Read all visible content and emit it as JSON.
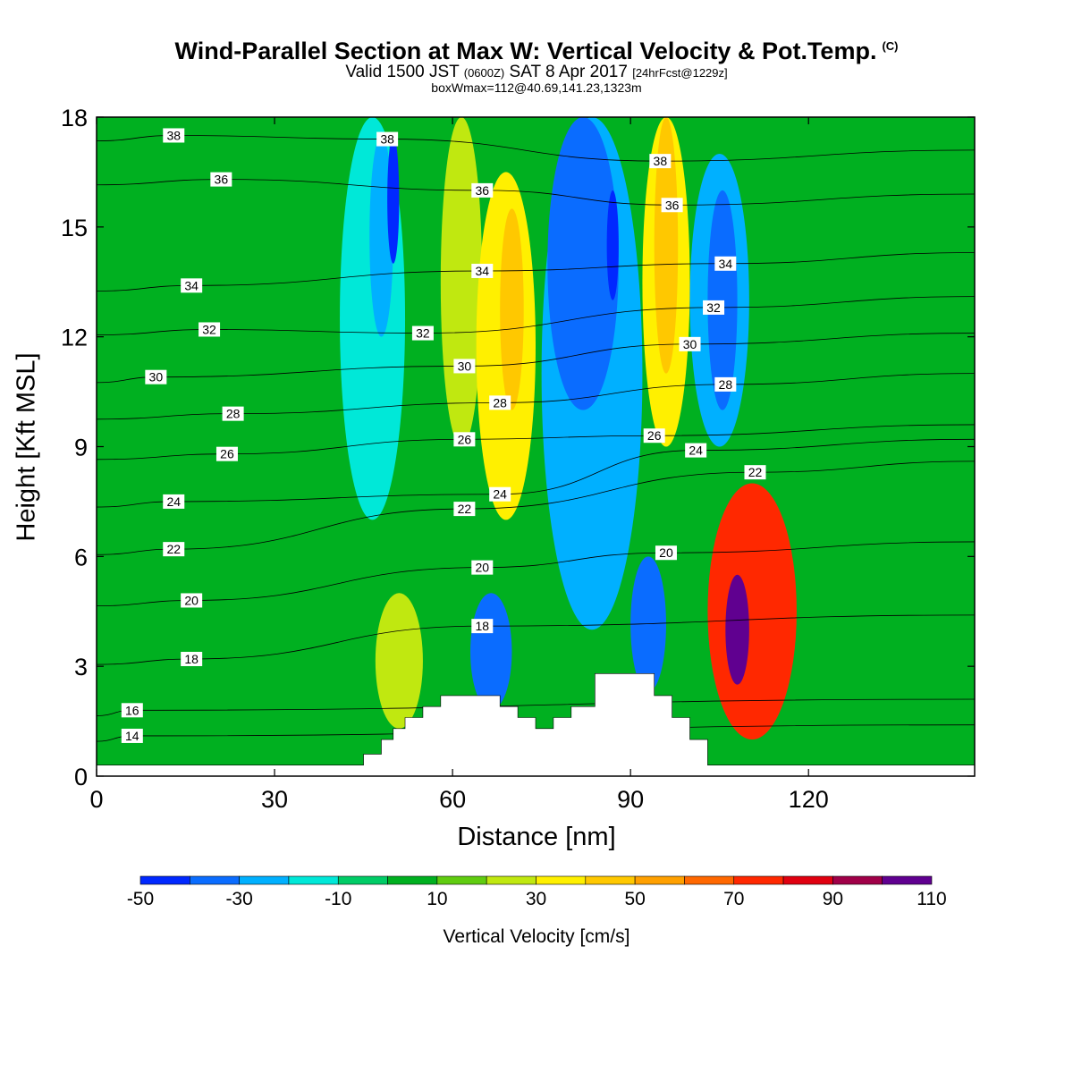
{
  "chart_data": {
    "type": "heatmap",
    "title": "Wind-Parallel Section at Max W: Vertical Velocity & Pot.Temp.",
    "title_mark": "(C)",
    "subtitle_main_1": "Valid 1500 JST",
    "subtitle_small_1": "(0600Z)",
    "subtitle_main_2": "SAT 8 Apr 2017",
    "subtitle_small_2": "[24hrFcst@1229z]",
    "subtitle2": "boxWmax=112@40.69,141.23,1323m",
    "xlabel": "Distance [nm]",
    "ylabel": "Height [Kft MSL]",
    "xlim": [
      0,
      148
    ],
    "ylim": [
      0,
      18
    ],
    "x_ticks": [
      "0",
      "30",
      "60",
      "90",
      "120"
    ],
    "x_tick_values": [
      0,
      30,
      60,
      90,
      120
    ],
    "y_ticks": [
      "0",
      "3",
      "6",
      "9",
      "12",
      "15",
      "18"
    ],
    "y_tick_values": [
      0,
      3,
      6,
      9,
      12,
      15,
      18
    ],
    "colorbar": {
      "label": "Vertical Velocity [cm/s]",
      "tick_labels": [
        "-50",
        "-30",
        "-10",
        "10",
        "30",
        "50",
        "70",
        "90",
        "110"
      ],
      "bins": [
        -50,
        -40,
        -30,
        -20,
        -10,
        0,
        10,
        20,
        30,
        40,
        50,
        60,
        70,
        80,
        90,
        100,
        110
      ],
      "colors": [
        "#0028ff",
        "#0a6cff",
        "#00b0ff",
        "#00e8d8",
        "#00cc66",
        "#00b020",
        "#60cc10",
        "#c0e810",
        "#fff000",
        "#ffc800",
        "#ffa000",
        "#ff6800",
        "#ff2800",
        "#e00010",
        "#a00048",
        "#600090"
      ]
    },
    "background_color": "#00b020",
    "terrain_profile": {
      "x": [
        0,
        45,
        45,
        48,
        48,
        50,
        50,
        52,
        52,
        55,
        55,
        58,
        58,
        68,
        68,
        71,
        71,
        74,
        74,
        77,
        77,
        80,
        80,
        84,
        84,
        94,
        94,
        97,
        97,
        100,
        100,
        103,
        103,
        148
      ],
      "y": [
        0.3,
        0.3,
        0.6,
        0.6,
        1.0,
        1.0,
        1.3,
        1.3,
        1.6,
        1.6,
        1.9,
        1.9,
        2.2,
        2.2,
        1.9,
        1.9,
        1.6,
        1.6,
        1.3,
        1.3,
        1.6,
        1.6,
        1.9,
        1.9,
        2.8,
        2.8,
        2.2,
        2.2,
        1.6,
        1.6,
        1.0,
        1.0,
        0.3,
        0.3
      ]
    },
    "vertical_velocity_features": [
      {
        "x_start": 41,
        "x_end": 52,
        "y_start": 7,
        "y_end": 18,
        "value": -20
      },
      {
        "x_start": 46,
        "x_end": 50,
        "y_start": 12,
        "y_end": 17.5,
        "value": -30
      },
      {
        "x_start": 49,
        "x_end": 51,
        "y_start": 14,
        "y_end": 17.5,
        "value": -45
      },
      {
        "x_start": 58,
        "x_end": 65,
        "y_start": 9,
        "y_end": 18,
        "value": 20
      },
      {
        "x_start": 64,
        "x_end": 74,
        "y_start": 7,
        "y_end": 16.5,
        "value": 30
      },
      {
        "x_start": 68,
        "x_end": 72,
        "y_start": 10,
        "y_end": 15.5,
        "value": 45
      },
      {
        "x_start": 75,
        "x_end": 92,
        "y_start": 4,
        "y_end": 18,
        "value": -25
      },
      {
        "x_start": 76,
        "x_end": 88,
        "y_start": 10,
        "y_end": 18,
        "value": -40
      },
      {
        "x_start": 86,
        "x_end": 88,
        "y_start": 13,
        "y_end": 16,
        "value": -50
      },
      {
        "x_start": 92,
        "x_end": 100,
        "y_start": 9,
        "y_end": 18,
        "value": 35
      },
      {
        "x_start": 94,
        "x_end": 98,
        "y_start": 11,
        "y_end": 18,
        "value": 45
      },
      {
        "x_start": 100,
        "x_end": 110,
        "y_start": 9,
        "y_end": 17,
        "value": -25
      },
      {
        "x_start": 103,
        "x_end": 108,
        "y_start": 10,
        "y_end": 16,
        "value": -40
      },
      {
        "x_start": 63,
        "x_end": 70,
        "y_start": 1.8,
        "y_end": 5,
        "value": -40
      },
      {
        "x_start": 90,
        "x_end": 96,
        "y_start": 2.3,
        "y_end": 6,
        "value": -35
      },
      {
        "x_start": 47,
        "x_end": 55,
        "y_start": 1.3,
        "y_end": 5,
        "value": 25
      },
      {
        "x_start": 103,
        "x_end": 118,
        "y_start": 1,
        "y_end": 8,
        "value": 70
      },
      {
        "x_start": 106,
        "x_end": 110,
        "y_start": 2.5,
        "y_end": 5.5,
        "value": 110
      }
    ],
    "potential_temperature_contours": {
      "levels": [
        14,
        16,
        18,
        20,
        22,
        24,
        26,
        28,
        30,
        32,
        34,
        36,
        38
      ],
      "labels": [
        {
          "text": "38",
          "x": 13,
          "y": 17.5
        },
        {
          "text": "36",
          "x": 21,
          "y": 16.3
        },
        {
          "text": "34",
          "x": 16,
          "y": 13.4
        },
        {
          "text": "32",
          "x": 19,
          "y": 12.2
        },
        {
          "text": "30",
          "x": 10,
          "y": 10.9
        },
        {
          "text": "28",
          "x": 23,
          "y": 9.9
        },
        {
          "text": "26",
          "x": 22,
          "y": 8.8
        },
        {
          "text": "24",
          "x": 13,
          "y": 7.5
        },
        {
          "text": "22",
          "x": 13,
          "y": 6.2
        },
        {
          "text": "20",
          "x": 16,
          "y": 4.8
        },
        {
          "text": "18",
          "x": 16,
          "y": 3.2
        },
        {
          "text": "16",
          "x": 6,
          "y": 1.8
        },
        {
          "text": "14",
          "x": 6,
          "y": 1.1
        },
        {
          "text": "38",
          "x": 49,
          "y": 17.4
        },
        {
          "text": "36",
          "x": 65,
          "y": 16.0
        },
        {
          "text": "34",
          "x": 65,
          "y": 13.8
        },
        {
          "text": "32",
          "x": 55,
          "y": 12.1
        },
        {
          "text": "30",
          "x": 62,
          "y": 11.2
        },
        {
          "text": "28",
          "x": 68,
          "y": 10.2
        },
        {
          "text": "26",
          "x": 62,
          "y": 9.2
        },
        {
          "text": "24",
          "x": 68,
          "y": 7.7
        },
        {
          "text": "22",
          "x": 62,
          "y": 7.3
        },
        {
          "text": "20",
          "x": 65,
          "y": 5.7
        },
        {
          "text": "18",
          "x": 65,
          "y": 4.1
        },
        {
          "text": "38",
          "x": 95,
          "y": 16.8
        },
        {
          "text": "36",
          "x": 97,
          "y": 15.6
        },
        {
          "text": "34",
          "x": 106,
          "y": 14.0
        },
        {
          "text": "32",
          "x": 104,
          "y": 12.8
        },
        {
          "text": "30",
          "x": 100,
          "y": 11.8
        },
        {
          "text": "28",
          "x": 106,
          "y": 10.7
        },
        {
          "text": "26",
          "x": 94,
          "y": 9.3
        },
        {
          "text": "24",
          "x": 101,
          "y": 8.9
        },
        {
          "text": "22",
          "x": 111,
          "y": 8.3
        },
        {
          "text": "20",
          "x": 96,
          "y": 6.1
        }
      ]
    }
  }
}
